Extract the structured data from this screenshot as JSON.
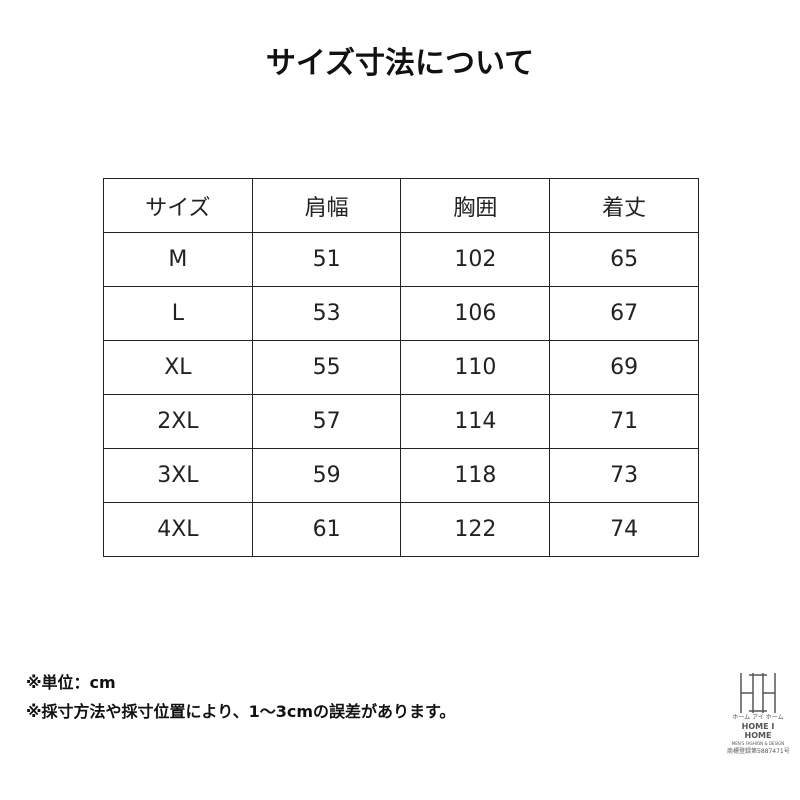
{
  "title": "サイズ寸法について",
  "table": {
    "headers": [
      "サイズ",
      "肩幅",
      "胸囲",
      "着丈"
    ],
    "rows": [
      [
        "M",
        "51",
        "102",
        "65"
      ],
      [
        "L",
        "53",
        "106",
        "67"
      ],
      [
        "XL",
        "55",
        "110",
        "69"
      ],
      [
        "2XL",
        "57",
        "114",
        "71"
      ],
      [
        "3XL",
        "59",
        "118",
        "73"
      ],
      [
        "4XL",
        "61",
        "122",
        "74"
      ]
    ]
  },
  "notes": [
    "※単位：cm",
    "※採寸方法や採寸位置により、1～3cmの誤差があります。"
  ],
  "logo": {
    "kana": "ホーム アイ ホーム",
    "name": "HOME I HOME",
    "tagline": "MEN'S FASHION & DESIGN",
    "reg": "商標登録第5887471号"
  }
}
